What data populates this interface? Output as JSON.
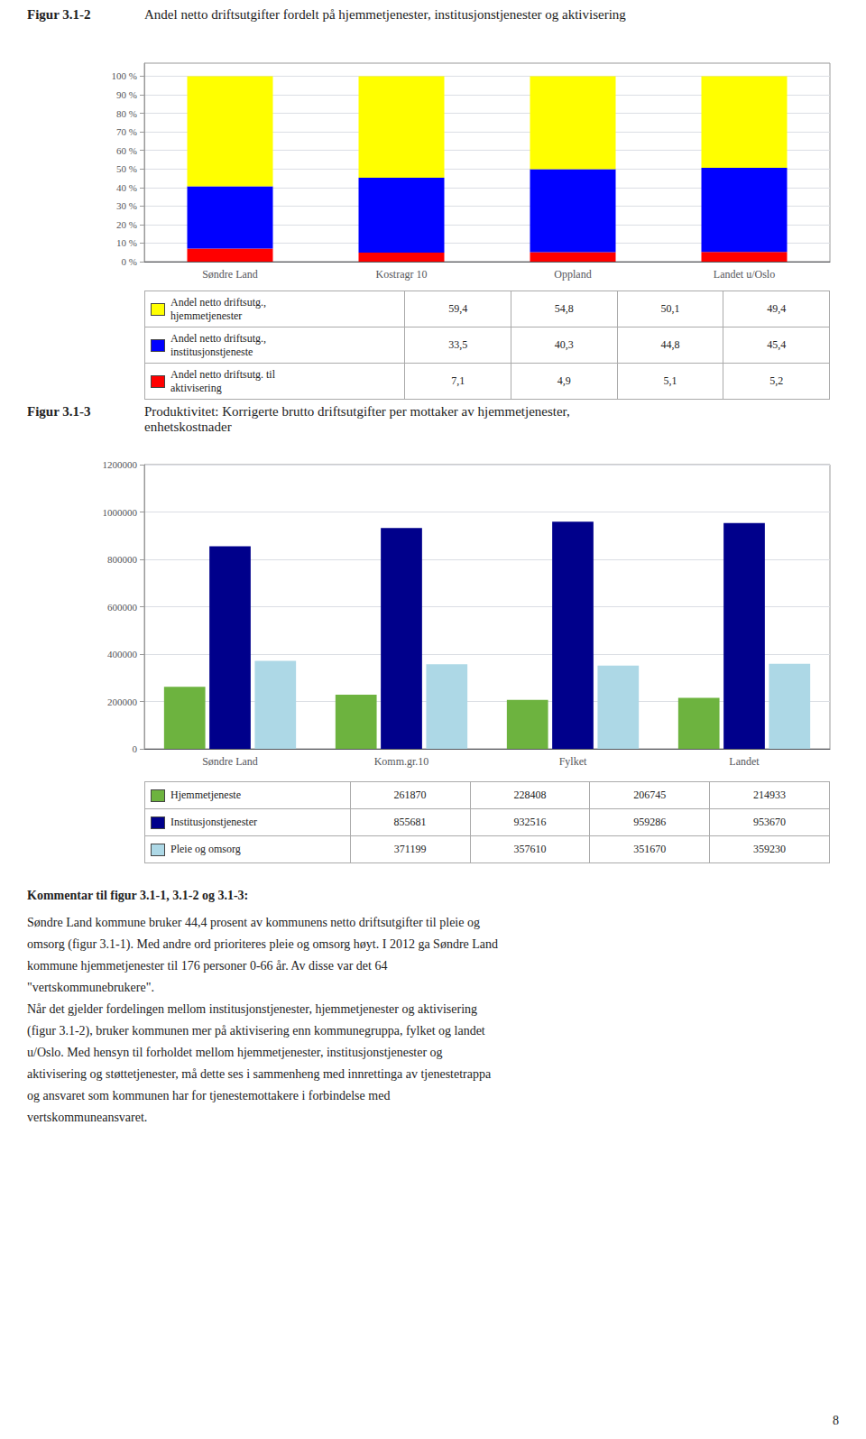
{
  "chart_data": [
    {
      "type": "bar",
      "title": "Figur 3.1-2",
      "subtitle": "Andel netto driftsutgifter fordelt på hjemmetjenester, institusjonstjenester og aktivisering",
      "categories": [
        "Søndre Land",
        "Kostragr 10",
        "Oppland",
        "Landet u/Oslo"
      ],
      "stacked": true,
      "grid": true,
      "series": [
        {
          "name": "Andel netto driftsutg. til\naktivisering",
          "color": "#FF0000",
          "values": [
            7.1,
            4.9,
            5.1,
            5.2
          ],
          "value_labels": [
            "7,1",
            "4,9",
            "5,1",
            "5,2"
          ]
        },
        {
          "name": "Andel netto driftsutg.,\ninstitusjonstjeneste",
          "color": "#0000FF",
          "values": [
            33.5,
            40.3,
            44.8,
            45.4
          ],
          "value_labels": [
            "33,5",
            "40,3",
            "44,8",
            "45,4"
          ]
        },
        {
          "name": "Andel netto driftsutg.,\nhjemmetjenester",
          "color": "#FFFF00",
          "values": [
            59.4,
            54.8,
            50.1,
            49.4
          ],
          "value_labels": [
            "59,4",
            "54,8",
            "50,1",
            "49,4"
          ]
        }
      ],
      "ylim": [
        0,
        107
      ],
      "yticks": [
        {
          "value": 0,
          "label": "0 %"
        },
        {
          "value": 10,
          "label": "10 %"
        },
        {
          "value": 20,
          "label": "20 %"
        },
        {
          "value": 30,
          "label": "30 %"
        },
        {
          "value": 40,
          "label": "40 %"
        },
        {
          "value": 50,
          "label": "50 %"
        },
        {
          "value": 60,
          "label": "60 %"
        },
        {
          "value": 70,
          "label": "70 %"
        },
        {
          "value": 80,
          "label": "80 %"
        },
        {
          "value": 90,
          "label": "90 %"
        },
        {
          "value": 100,
          "label": "100 %"
        }
      ]
    },
    {
      "type": "bar",
      "title": "Figur 3.1-3",
      "subtitle": "Produktivitet: Korrigerte brutto driftsutgifter per mottaker av hjemmetjenester,\nenhetskostnader",
      "categories": [
        "Søndre Land",
        "Komm.gr.10",
        "Fylket",
        "Landet"
      ],
      "grid": true,
      "series": [
        {
          "name": "Hjemmetjeneste",
          "color": "#6DB33F",
          "values": [
            261870,
            228408,
            206745,
            214933
          ]
        },
        {
          "name": "Institusjonstjenester",
          "color": "#00008B",
          "values": [
            855681,
            932516,
            959286,
            953670
          ]
        },
        {
          "name": "Pleie og omsorg",
          "color": "#ADD8E6",
          "values": [
            371199,
            357610,
            351670,
            359230
          ]
        }
      ],
      "ylim": [
        0,
        1200000
      ],
      "yticks": [
        0,
        200000,
        400000,
        600000,
        800000,
        1000000,
        1200000
      ]
    }
  ],
  "annotations": [
    "Kommentar til figur 3.1-1, 3.1-2 og 3.1-3:",
    "Søndre Land kommune bruker 44,4 prosent av kommunens netto driftsutgifter til pleie og",
    "omsorg (figur 3.1-1). Med andre ord prioriteres pleie og omsorg høyt. I 2012 ga Søndre Land",
    "kommune hjemmetjenester til 176 personer 0-66 år. Av disse var det 64",
    "\"vertskommunebrukere\".",
    "Når det gjelder fordelingen mellom institusjonstjenester, hjemmetjenester og aktivisering",
    "(figur 3.1-2), bruker kommunen mer på aktivisering enn kommunegruppa, fylket og landet",
    "u/Oslo. Med hensyn til forholdet mellom hjemmetjenester, institusjonstjenester og",
    "aktivisering og støttetjenester, må dette ses i sammenheng med innrettinga av tjenestetrappa",
    "og ansvaret som kommunen har for tjenestemottakere i forbindelse med",
    "vertskommuneansvaret.",
    "8"
  ]
}
